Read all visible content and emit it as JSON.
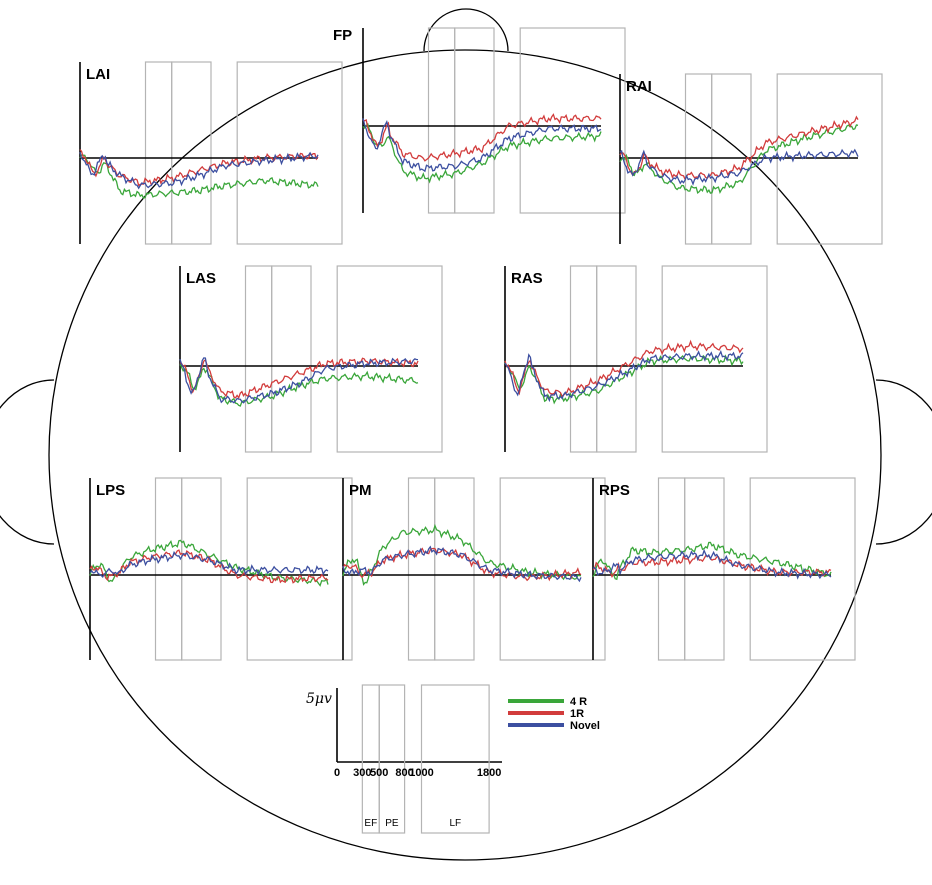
{
  "chart_data": {
    "type": "line",
    "x_unit": "ms",
    "time_range": [
      0,
      1800
    ],
    "windows": [
      {
        "label": "EF",
        "start": 300,
        "end": 500
      },
      {
        "label": "PE",
        "start": 500,
        "end": 800
      },
      {
        "label": "LF",
        "start": 1000,
        "end": 1800
      }
    ],
    "scale_label": "5μv",
    "scale_ticks": [
      "0",
      "300",
      "500",
      "800",
      "1000",
      "1800"
    ],
    "colors": {
      "4 R": "#3aa63a",
      "1R": "#d23c3c",
      "Novel": "#3c4fa0"
    },
    "legend": {
      "position": "bottom-center",
      "entries": [
        "4 R",
        "1R",
        "Novel"
      ]
    },
    "x_knots": [
      0,
      100,
      180,
      300,
      450,
      700,
      900,
      1100,
      1400,
      1800
    ],
    "series": [
      {
        "name": "4 R",
        "electrodes": {
          "LAI": [
            0,
            -2.5,
            -0.5,
            -6.5,
            -7.5,
            -7.0,
            -6.5,
            -5.5,
            -4.5,
            -5.5
          ],
          "FP": [
            0,
            -4.0,
            -1.5,
            -9.0,
            -10.5,
            -9.5,
            -7.5,
            -4.0,
            -2.5,
            -2.0
          ],
          "RAI": [
            0,
            -3.0,
            -0.5,
            -4.0,
            -6.0,
            -6.5,
            -5.0,
            1.5,
            4.0,
            6.5
          ],
          "LAS": [
            0,
            -4.5,
            0.5,
            -6.5,
            -7.5,
            -6.0,
            -4.0,
            -2.5,
            -2.0,
            -3.0
          ],
          "RAS": [
            0,
            -4.5,
            0.5,
            -6.5,
            -6.5,
            -5.0,
            -2.0,
            1.0,
            1.5,
            1.0
          ],
          "LPS": [
            0,
            1.5,
            -0.5,
            3.5,
            5.0,
            6.5,
            4.0,
            1.5,
            -0.5,
            -1.5
          ],
          "PM": [
            0,
            3.0,
            -1.0,
            5.5,
            8.5,
            9.0,
            7.0,
            2.5,
            0.5,
            -0.5
          ],
          "RPS": [
            0,
            2.5,
            0.5,
            5.0,
            4.5,
            5.0,
            6.0,
            4.0,
            2.5,
            0.0
          ]
        }
      },
      {
        "name": "1R",
        "electrodes": {
          "LAI": [
            0,
            -2.0,
            -0.5,
            -3.5,
            -5.0,
            -4.0,
            -2.5,
            -1.0,
            0.0,
            0.5
          ],
          "FP": [
            0,
            -3.0,
            -0.5,
            -5.5,
            -6.5,
            -5.5,
            -4.5,
            0.0,
            1.5,
            1.5
          ],
          "RAI": [
            0,
            -2.5,
            0.0,
            -2.5,
            -3.5,
            -3.5,
            -2.0,
            3.0,
            5.0,
            7.5
          ],
          "LAS": [
            0,
            -4.0,
            1.0,
            -5.0,
            -6.0,
            -3.5,
            -1.5,
            0.5,
            1.0,
            0.5
          ],
          "RAS": [
            0,
            -4.0,
            1.0,
            -5.0,
            -5.5,
            -3.0,
            0.0,
            3.0,
            4.0,
            3.5
          ],
          "LPS": [
            0,
            1.5,
            -0.5,
            2.5,
            3.5,
            4.5,
            3.0,
            0.0,
            -1.0,
            -0.5
          ],
          "PM": [
            0,
            2.5,
            -0.5,
            3.0,
            4.0,
            5.0,
            4.0,
            0.5,
            -0.5,
            0.5
          ],
          "RPS": [
            0,
            2.0,
            0.5,
            2.5,
            2.5,
            3.0,
            3.5,
            2.0,
            0.5,
            0.5
          ]
        }
      },
      {
        "name": "Novel",
        "electrodes": {
          "LAI": [
            0,
            -2.0,
            -0.5,
            -3.5,
            -5.5,
            -5.0,
            -3.5,
            -1.5,
            -0.5,
            0.5
          ],
          "FP": [
            0,
            -3.5,
            -0.5,
            -7.0,
            -8.5,
            -8.0,
            -6.5,
            -2.5,
            -0.5,
            -0.5
          ],
          "RAI": [
            0,
            -2.5,
            -0.5,
            -3.5,
            -4.5,
            -4.0,
            -3.0,
            0.0,
            0.5,
            1.0
          ],
          "LAS": [
            0,
            -4.5,
            0.5,
            -6.5,
            -7.0,
            -5.5,
            -3.5,
            -0.5,
            0.5,
            1.0
          ],
          "RAS": [
            0,
            -4.5,
            1.0,
            -6.0,
            -6.0,
            -4.0,
            -1.5,
            1.5,
            2.0,
            2.0
          ],
          "LPS": [
            0,
            1.5,
            -0.5,
            2.0,
            3.0,
            4.0,
            3.0,
            1.0,
            1.0,
            1.0
          ],
          "PM": [
            0,
            2.0,
            -0.5,
            3.0,
            4.0,
            5.0,
            4.0,
            1.0,
            0.0,
            -0.5
          ],
          "RPS": [
            0,
            2.0,
            0.5,
            3.0,
            3.5,
            4.0,
            4.0,
            2.0,
            0.5,
            0.0
          ]
        }
      }
    ],
    "electrodes": [
      {
        "id": "LAI",
        "label": "LAI"
      },
      {
        "id": "FP",
        "label": "FP"
      },
      {
        "id": "RAI",
        "label": "RAI"
      },
      {
        "id": "LAS",
        "label": "LAS"
      },
      {
        "id": "RAS",
        "label": "RAS"
      },
      {
        "id": "LPS",
        "label": "LPS"
      },
      {
        "id": "PM",
        "label": "PM"
      },
      {
        "id": "RPS",
        "label": "RPS"
      }
    ]
  }
}
